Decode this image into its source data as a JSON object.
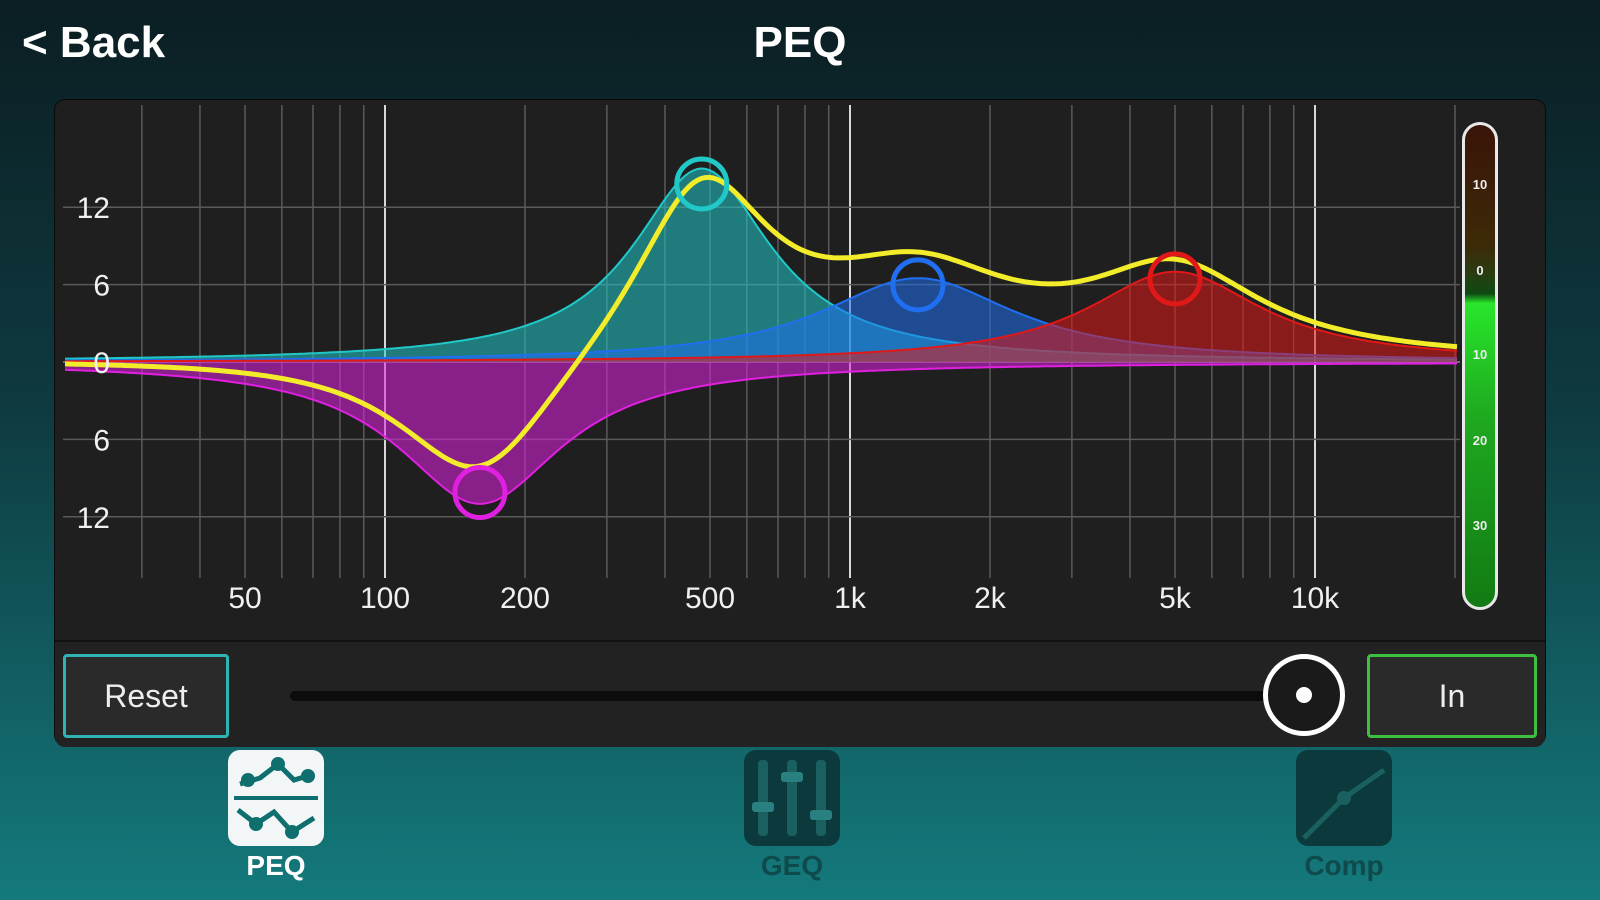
{
  "header": {
    "back_label": "< Back",
    "title": "PEQ"
  },
  "graph": {
    "y_labels": [
      "12",
      "6",
      "0",
      "6",
      "12"
    ],
    "x_labels": [
      "50",
      "100",
      "200",
      "500",
      "1k",
      "2k",
      "5k",
      "10k"
    ],
    "bands": [
      {
        "name": "band-1",
        "color": "#e020e0",
        "freq_hz": 160,
        "gain_db": -11
      },
      {
        "name": "band-2",
        "color": "#20c8c8",
        "freq_hz": 480,
        "gain_db": 15
      },
      {
        "name": "band-3",
        "color": "#1f6ff0",
        "freq_hz": 1400,
        "gain_db": 6.5
      },
      {
        "name": "band-4",
        "color": "#e01818",
        "freq_hz": 5000,
        "gain_db": 7
      }
    ],
    "response_color": "#f2ec2a"
  },
  "meter": {
    "labels": [
      "10",
      "0",
      "10",
      "20",
      "30"
    ]
  },
  "controls": {
    "reset_label": "Reset",
    "in_label": "In"
  },
  "tabs": [
    {
      "label": "PEQ",
      "active": true
    },
    {
      "label": "GEQ",
      "active": false
    },
    {
      "label": "Comp",
      "active": false
    }
  ]
}
